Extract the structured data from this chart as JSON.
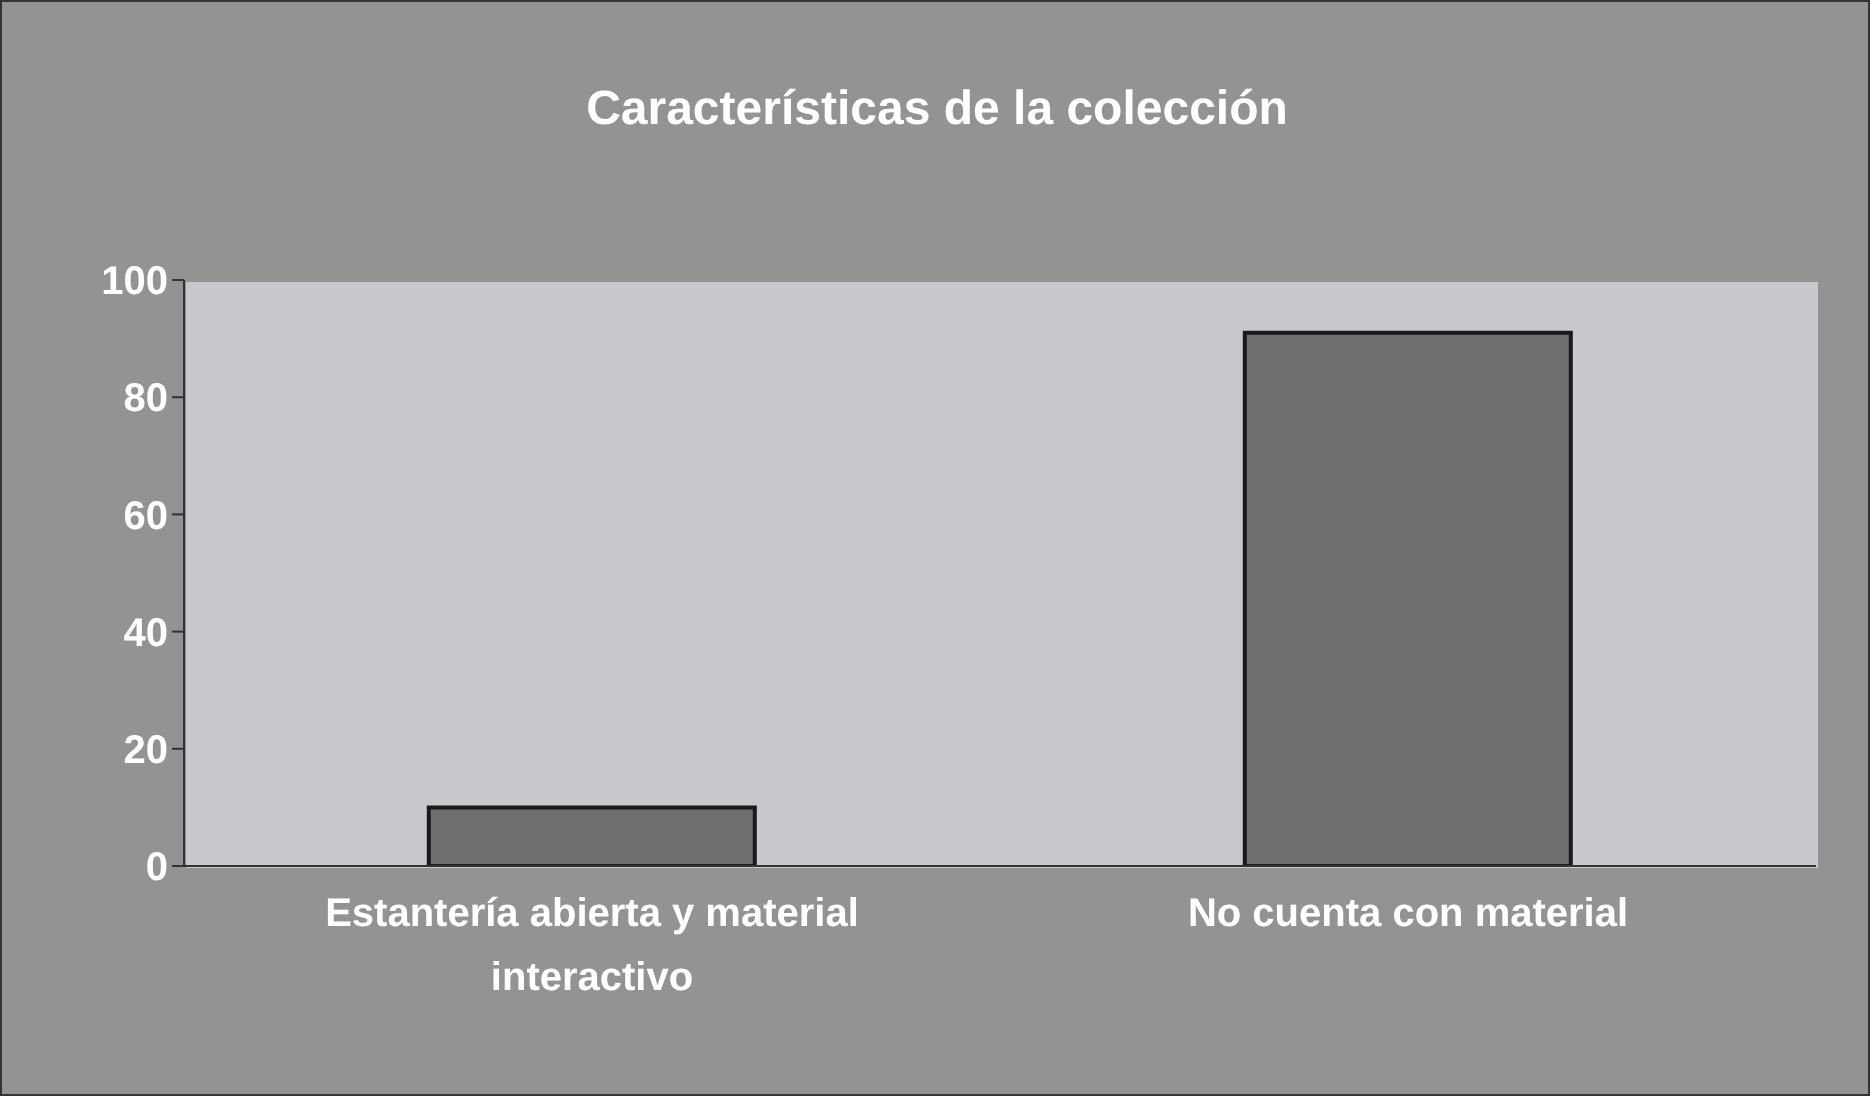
{
  "chart_data": {
    "type": "bar",
    "title": "Características de la colección",
    "categories": [
      "Estantería abierta y material interactivo",
      "No cuenta con material"
    ],
    "values": [
      10,
      91
    ],
    "color": "#6e6e6e",
    "ylim": [
      0,
      100
    ],
    "yticks": [
      0,
      20,
      40,
      60,
      80,
      100
    ]
  }
}
